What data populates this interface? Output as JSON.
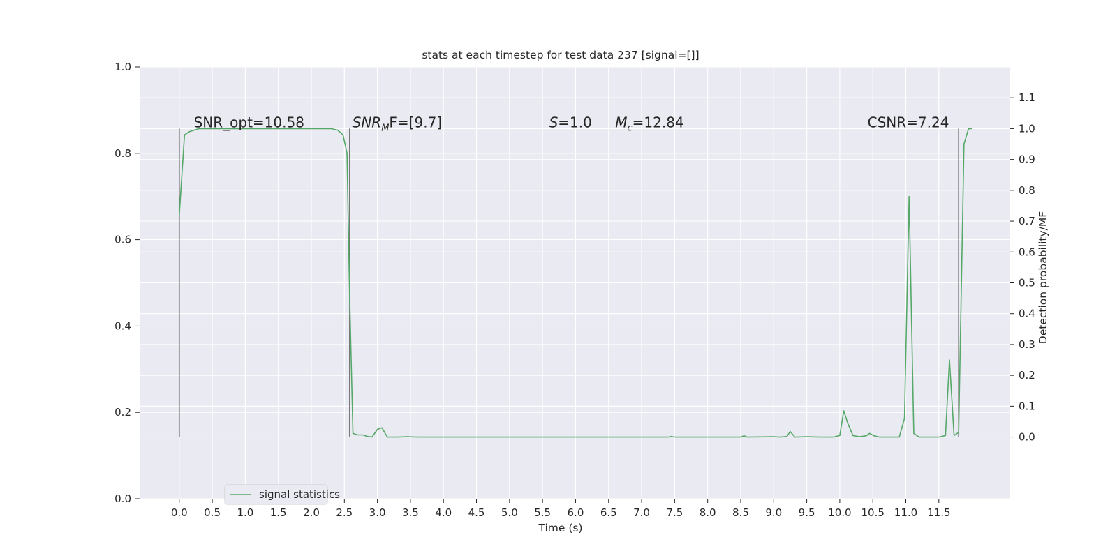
{
  "chart_data": {
    "type": "line",
    "title": "stats at each timestep for test data 237 [signal=[]]",
    "xlabel": "Time (s)",
    "ylabel_left": "",
    "ylabel_right": "Detection probability/MF",
    "xlim": [
      -0.6,
      12.58
    ],
    "ylim_left": [
      0.0,
      1.0
    ],
    "ylim_right": [
      -0.2,
      1.2
    ],
    "x_ticks": [
      "0.0",
      "0.5",
      "1.0",
      "1.5",
      "2.0",
      "2.5",
      "3.0",
      "3.5",
      "4.0",
      "4.5",
      "5.0",
      "5.5",
      "6.0",
      "6.5",
      "7.0",
      "7.5",
      "8.0",
      "8.5",
      "9.0",
      "9.5",
      "10.0",
      "10.5",
      "11.0",
      "11.5"
    ],
    "y_ticks_left": [
      "0.0",
      "0.2",
      "0.4",
      "0.6",
      "0.8",
      "1.0"
    ],
    "y_ticks_right": [
      "0.0",
      "0.1",
      "0.2",
      "0.3",
      "0.4",
      "0.5",
      "0.6",
      "0.7",
      "0.8",
      "0.9",
      "1.0",
      "1.1"
    ],
    "grid": true,
    "background": "#eaeaf2",
    "legend": {
      "location": "lower-left",
      "entries": [
        "signal statistics"
      ]
    },
    "series": [
      {
        "name": "signal statistics",
        "color": "#55a868",
        "axis": "right",
        "x": [
          0.0,
          0.08,
          0.15,
          0.3,
          0.5,
          1.0,
          1.5,
          2.0,
          2.3,
          2.4,
          2.48,
          2.54,
          2.58,
          2.63,
          2.7,
          2.78,
          2.85,
          2.92,
          3.0,
          3.07,
          3.15,
          3.3,
          3.45,
          3.6,
          4.0,
          5.0,
          6.0,
          7.0,
          7.4,
          7.45,
          7.5,
          8.0,
          8.5,
          8.55,
          8.6,
          9.0,
          9.1,
          9.2,
          9.25,
          9.32,
          9.5,
          9.7,
          9.9,
          10.0,
          10.06,
          10.12,
          10.2,
          10.3,
          10.4,
          10.45,
          10.52,
          10.6,
          10.8,
          10.9,
          10.98,
          11.05,
          11.12,
          11.2,
          11.3,
          11.5,
          11.6,
          11.66,
          11.73,
          11.8,
          11.88,
          11.95,
          12.0
        ],
        "values": [
          0.72,
          0.98,
          0.99,
          1.0,
          1.0,
          1.0,
          1.0,
          1.0,
          1.0,
          0.995,
          0.98,
          0.92,
          0.45,
          0.012,
          0.007,
          0.007,
          0.002,
          0.0,
          0.025,
          0.03,
          0.0,
          0.0,
          0.001,
          0.0,
          0.0,
          0.0,
          0.0,
          0.0,
          0.0,
          0.002,
          0.0,
          0.0,
          0.0,
          0.004,
          0.0,
          0.001,
          0.0,
          0.002,
          0.018,
          0.0,
          0.001,
          0.0,
          0.0,
          0.005,
          0.085,
          0.045,
          0.005,
          0.001,
          0.004,
          0.012,
          0.004,
          0.0,
          0.0,
          0.0,
          0.06,
          0.78,
          0.012,
          0.0,
          0.0,
          0.0,
          0.005,
          0.25,
          0.005,
          0.015,
          0.95,
          1.0,
          1.0
        ]
      }
    ],
    "vlines": [
      0.0,
      2.58,
      11.8
    ],
    "annotations": [
      {
        "text": "SNR_opt=10.58",
        "x": 0.22,
        "y": 1.0,
        "style": "plain"
      },
      {
        "base": "SNR",
        "sub": "M",
        "tail": "F=[9.7]",
        "x": 2.62,
        "y": 1.0,
        "style": "math"
      },
      {
        "base": "S",
        "tail": "=1.0",
        "x": 5.6,
        "y": 1.0,
        "style": "math"
      },
      {
        "base": "M",
        "sub": "c",
        "tail": "=12.84",
        "x": 6.6,
        "y": 1.0,
        "style": "math"
      },
      {
        "text": "CSNR=7.24",
        "x": 10.42,
        "y": 1.0,
        "style": "plain"
      }
    ]
  }
}
